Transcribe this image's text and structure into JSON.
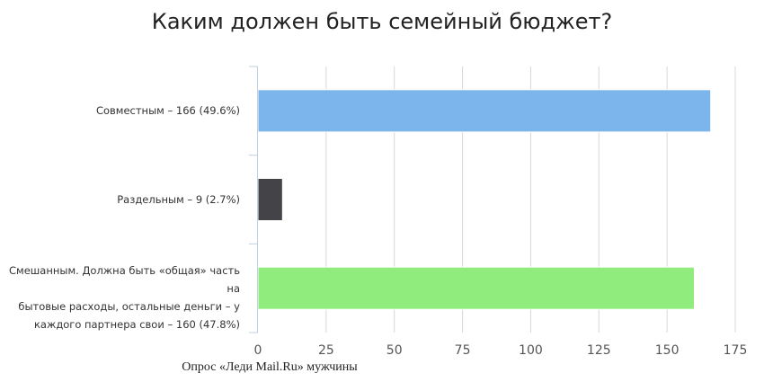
{
  "chart_data": {
    "type": "bar",
    "orientation": "horizontal",
    "title": "Каким должен быть семейный бюджет?",
    "categories": [
      "Совместным – 166 (49.6%)",
      "Раздельным – 9 (2.7%)",
      "Смешанным. Должна быть «общая» часть на бытовые расходы, остальные деньги – у каждого партнера свои – 160 (47.8%)"
    ],
    "category_lines": [
      [
        "Совместным – 166 (49.6%)"
      ],
      [
        "Раздельным – 9 (2.7%)"
      ],
      [
        "Смешанным. Должна быть «общая» часть на",
        "бытовые расходы, остальные деньги – у",
        "каждого партнера свои – 160 (47.8%)"
      ]
    ],
    "values": [
      166,
      9,
      160
    ],
    "colors": [
      "#7cb5ec",
      "#434348",
      "#90ed7d"
    ],
    "xlim": [
      0,
      175
    ],
    "ticks": [
      0,
      25,
      50,
      75,
      100,
      125,
      150,
      175
    ],
    "grid": true,
    "legend": "none"
  },
  "source": "Опрос  «Леди Mail.Ru» мужчины"
}
